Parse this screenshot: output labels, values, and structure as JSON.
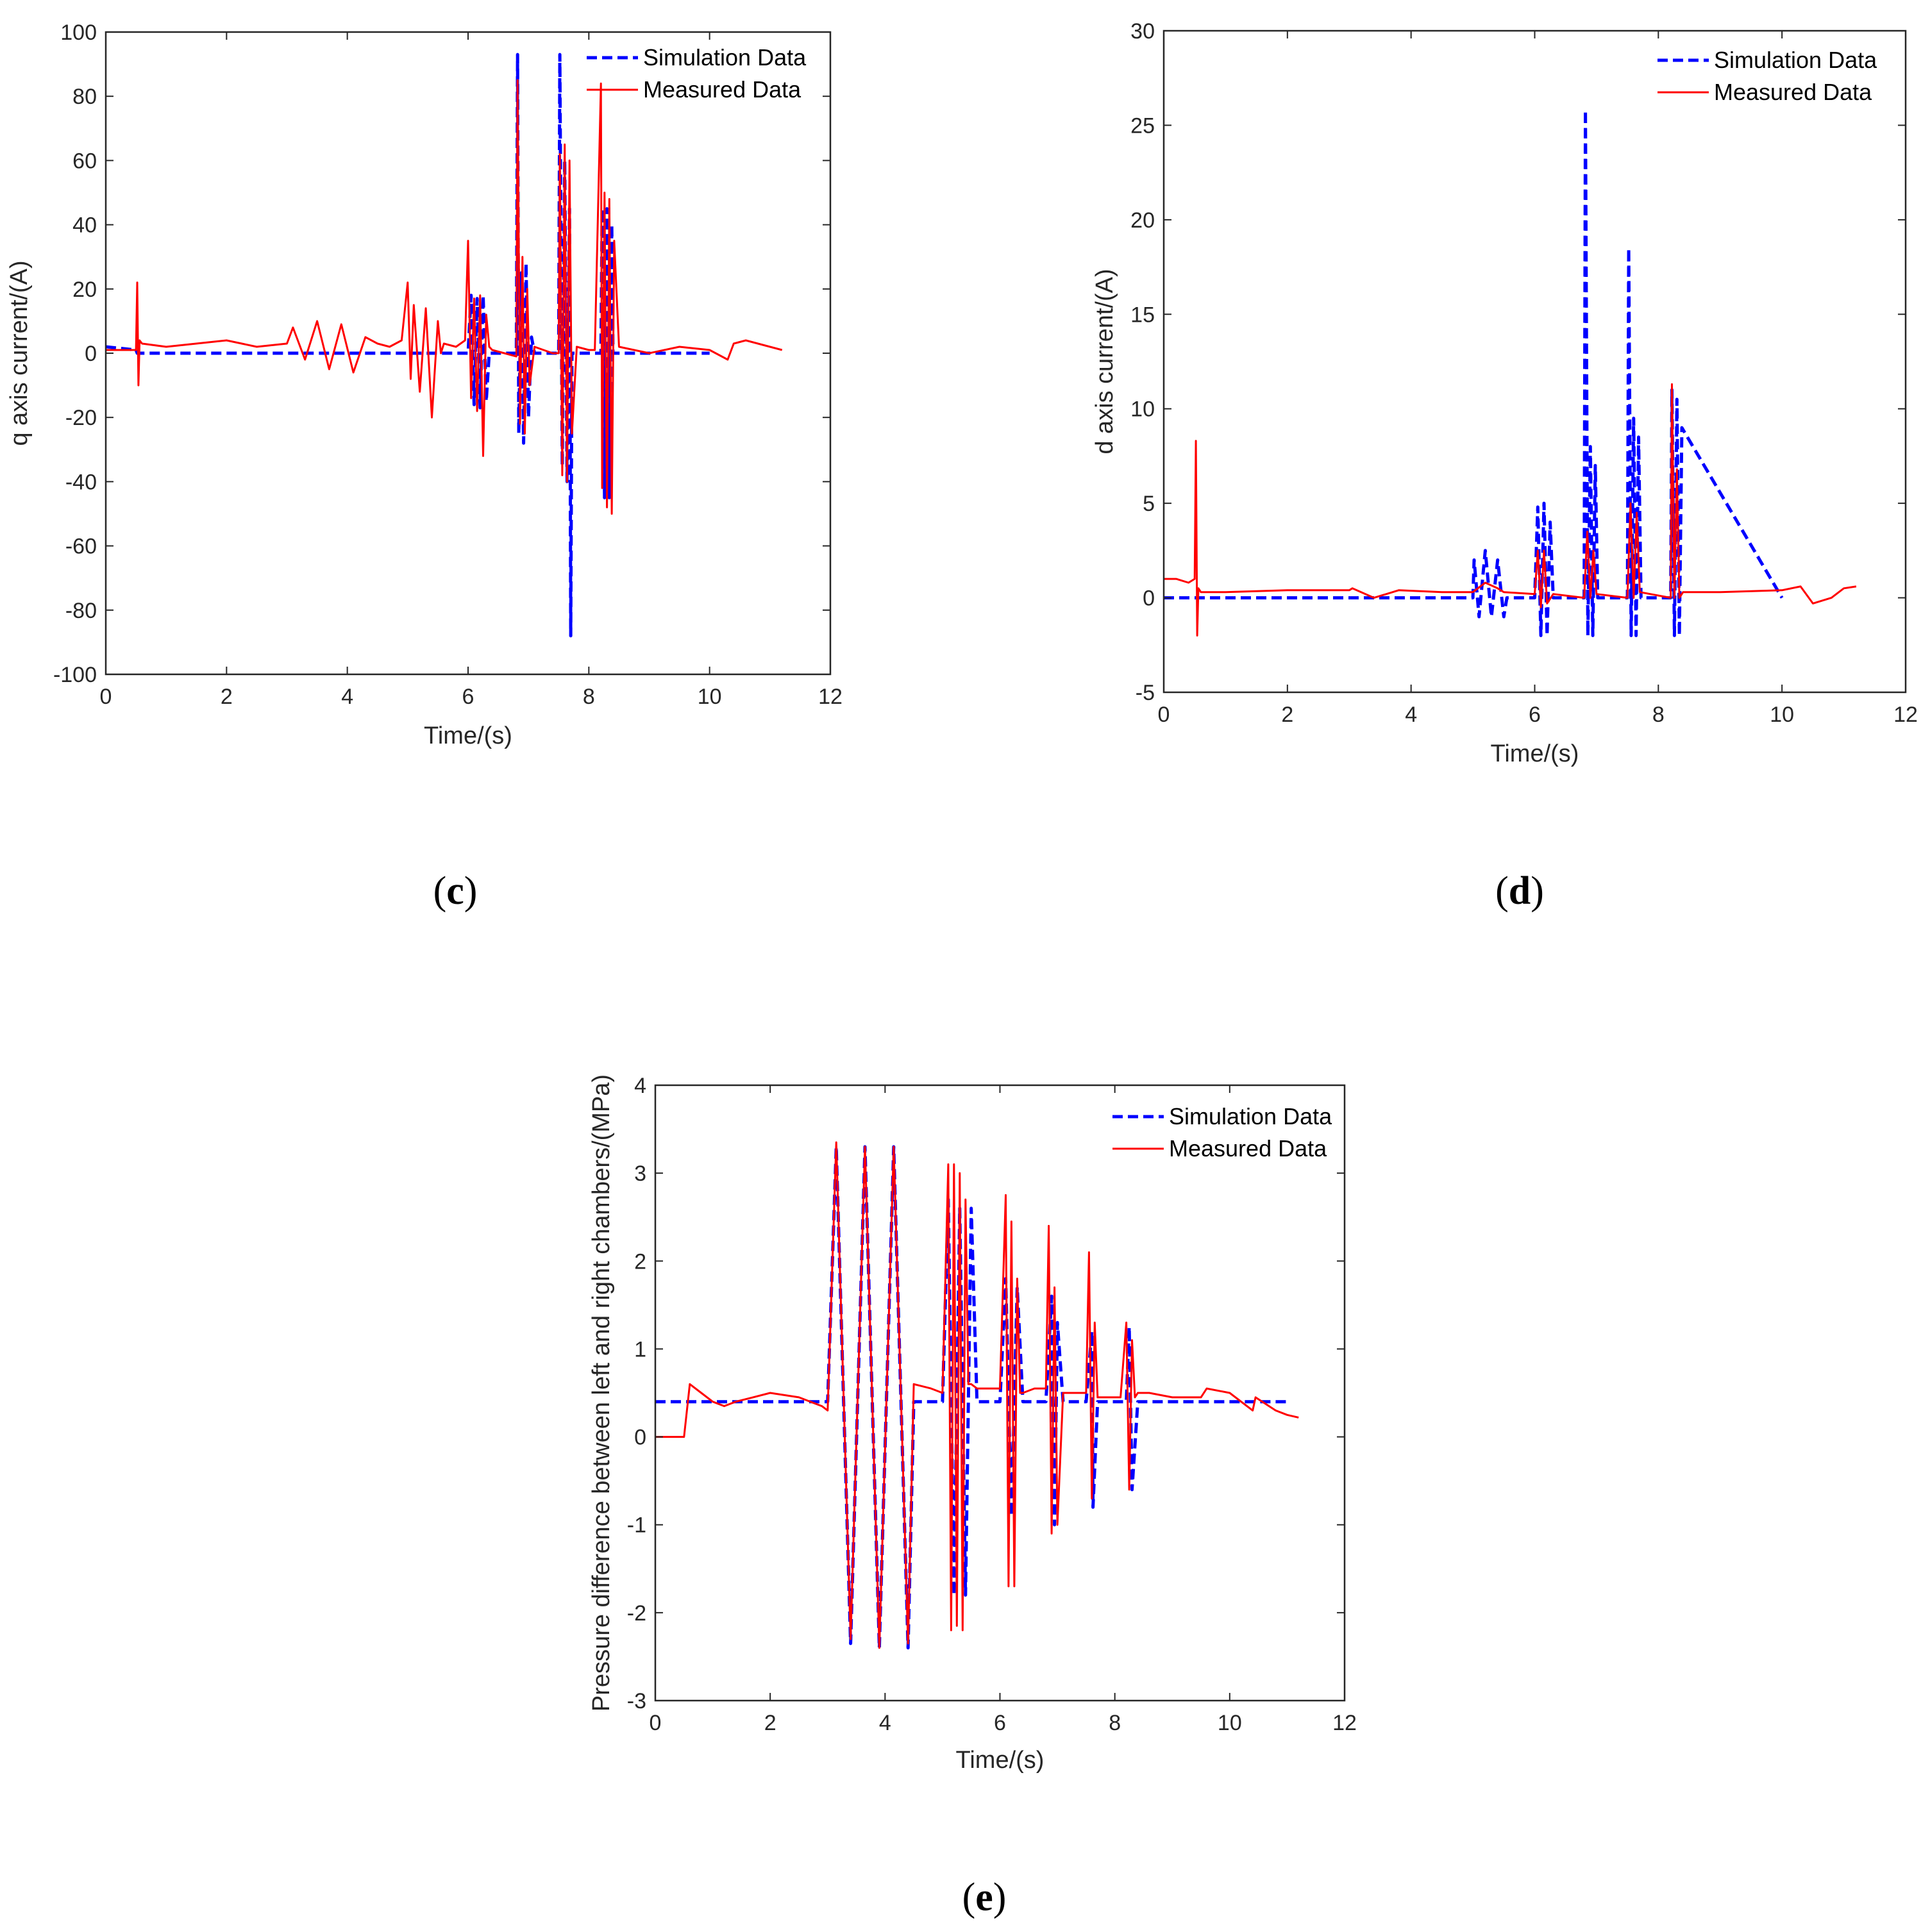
{
  "chart_data": [
    {
      "id": "c",
      "type": "line",
      "panel_label": "c",
      "xlabel": "Time/(s)",
      "ylabel": "q axis current/(A)",
      "xlim": [
        0,
        12
      ],
      "ylim": [
        -100,
        100
      ],
      "xticks": [
        0,
        2,
        4,
        6,
        8,
        10,
        12
      ],
      "yticks": [
        -100,
        -80,
        -60,
        -40,
        -20,
        0,
        20,
        40,
        60,
        80,
        100
      ],
      "legend_position": "top-right",
      "series": [
        {
          "name": "Simulation Data",
          "color": "#0000ff",
          "style": "dashed",
          "x": [
            0,
            0.5,
            0.52,
            3.0,
            3.3,
            3.6,
            3.9,
            4.2,
            4.5,
            4.7,
            5.0,
            5.4,
            5.8,
            6.0,
            6.05,
            6.1,
            6.15,
            6.2,
            6.25,
            6.3,
            6.35,
            6.4,
            6.6,
            6.8,
            6.82,
            6.84,
            6.88,
            6.92,
            6.96,
            7.0,
            7.05,
            7.1,
            7.4,
            7.5,
            7.52,
            7.56,
            7.6,
            7.64,
            7.68,
            7.7,
            7.72,
            7.8,
            8.0,
            8.2,
            8.22,
            8.26,
            8.3,
            8.34,
            8.38,
            8.4,
            8.6,
            10.0
          ],
          "y": [
            2,
            1,
            0,
            0,
            0,
            0,
            0,
            0,
            0,
            0,
            0,
            0,
            0,
            0,
            18,
            -16,
            17,
            -17,
            18,
            -15,
            0,
            0,
            0,
            0,
            93,
            -25,
            25,
            -28,
            28,
            -20,
            5,
            0,
            0,
            0,
            93,
            -35,
            60,
            -40,
            45,
            -88,
            0,
            0,
            0,
            0,
            45,
            -45,
            45,
            -45,
            40,
            0,
            0,
            0
          ]
        },
        {
          "name": "Measured Data",
          "color": "#ff0000",
          "style": "solid",
          "x": [
            0,
            0.3,
            0.5,
            0.52,
            0.54,
            0.56,
            0.6,
            1.0,
            1.5,
            2.0,
            2.5,
            3.0,
            3.1,
            3.3,
            3.5,
            3.7,
            3.9,
            4.1,
            4.3,
            4.5,
            4.7,
            4.9,
            5.0,
            5.05,
            5.1,
            5.2,
            5.3,
            5.4,
            5.5,
            5.55,
            5.6,
            5.8,
            5.95,
            6.0,
            6.05,
            6.1,
            6.15,
            6.2,
            6.25,
            6.3,
            6.35,
            6.4,
            6.6,
            6.8,
            6.82,
            6.86,
            6.9,
            6.94,
            6.98,
            7.02,
            7.1,
            7.4,
            7.5,
            7.52,
            7.56,
            7.6,
            7.64,
            7.68,
            7.72,
            7.8,
            8.0,
            8.1,
            8.2,
            8.22,
            8.26,
            8.3,
            8.34,
            8.38,
            8.42,
            8.5,
            9.0,
            9.5,
            10.0,
            10.3,
            10.4,
            10.6,
            11.0,
            11.2
          ],
          "y": [
            1,
            1,
            1,
            22,
            -10,
            4,
            3,
            2,
            3,
            4,
            2,
            3,
            8,
            -2,
            10,
            -5,
            9,
            -6,
            5,
            3,
            2,
            4,
            22,
            -8,
            15,
            -12,
            14,
            -20,
            10,
            0,
            3,
            2,
            4,
            35,
            -14,
            17,
            -18,
            18,
            -32,
            12,
            2,
            1,
            0,
            -1,
            85,
            -22,
            30,
            -25,
            20,
            -10,
            2,
            0,
            0,
            62,
            -38,
            65,
            -40,
            60,
            -25,
            2,
            1,
            1,
            84,
            -42,
            50,
            -48,
            48,
            -50,
            35,
            2,
            0,
            2,
            1,
            -2,
            3,
            4,
            2,
            1
          ]
        }
      ]
    },
    {
      "id": "d",
      "type": "line",
      "panel_label": "d",
      "xlabel": "Time/(s)",
      "ylabel": "d axis current/(A)",
      "xlim": [
        0,
        12
      ],
      "ylim": [
        -5,
        30
      ],
      "xticks": [
        0,
        2,
        4,
        6,
        8,
        10,
        12
      ],
      "yticks": [
        -5,
        0,
        5,
        10,
        15,
        20,
        25,
        30
      ],
      "legend_position": "top-right",
      "series": [
        {
          "name": "Simulation Data",
          "color": "#0000ff",
          "style": "dashed",
          "x": [
            0,
            0.5,
            0.52,
            5.0,
            5.02,
            5.1,
            5.2,
            5.3,
            5.4,
            5.5,
            5.55,
            6.0,
            6.05,
            6.1,
            6.15,
            6.2,
            6.25,
            6.3,
            6.8,
            6.82,
            6.86,
            6.9,
            6.94,
            6.98,
            7.02,
            7.5,
            7.52,
            7.56,
            7.6,
            7.64,
            7.68,
            7.72,
            8.2,
            8.22,
            8.26,
            8.3,
            8.34,
            8.38,
            10.0
          ],
          "y": [
            0,
            0,
            0,
            0,
            2,
            -1,
            2.5,
            -1,
            2,
            -1,
            0,
            0,
            4.8,
            -2,
            5,
            -2,
            4,
            0,
            0,
            25.8,
            -2,
            8,
            -2,
            7,
            0,
            0,
            18.5,
            -2,
            9.5,
            -2,
            8.5,
            0,
            0,
            11,
            -2,
            10.5,
            -2,
            9,
            0
          ]
        },
        {
          "name": "Measured Data",
          "color": "#ff0000",
          "style": "solid",
          "x": [
            0,
            0.2,
            0.4,
            0.5,
            0.52,
            0.54,
            0.56,
            0.6,
            1.0,
            2.0,
            3.0,
            3.05,
            3.4,
            3.8,
            4.5,
            5.0,
            5.2,
            5.4,
            5.5,
            6.0,
            6.05,
            6.1,
            6.15,
            6.2,
            6.3,
            6.8,
            6.85,
            6.9,
            6.95,
            7.0,
            7.5,
            7.55,
            7.6,
            7.65,
            7.7,
            8.2,
            8.22,
            8.26,
            8.3,
            8.34,
            8.4,
            9.0,
            10.0,
            10.3,
            10.5,
            10.8,
            11.0,
            11.2
          ],
          "y": [
            1,
            1,
            0.8,
            1,
            8.3,
            -2,
            0.5,
            0.3,
            0.3,
            0.4,
            0.4,
            0.5,
            0,
            0.4,
            0.3,
            0.3,
            0.8,
            0.5,
            0.3,
            0.2,
            2.5,
            -0.5,
            2.5,
            -0.3,
            0.2,
            0,
            3.5,
            0,
            2.5,
            0.2,
            0,
            5,
            0,
            4.5,
            0.3,
            0,
            11.3,
            0,
            6.8,
            0,
            0.3,
            0.3,
            0.4,
            0.6,
            -0.3,
            0,
            0.5,
            0.6
          ]
        }
      ]
    },
    {
      "id": "e",
      "type": "line",
      "panel_label": "e",
      "xlabel": "Time/(s)",
      "ylabel": "Pressure difference between left and right chambers/(MPa)",
      "xlim": [
        0,
        12
      ],
      "ylim": [
        -3,
        4
      ],
      "xticks": [
        0,
        2,
        4,
        6,
        8,
        10,
        12
      ],
      "yticks": [
        -3,
        -2,
        -1,
        0,
        1,
        2,
        3,
        4
      ],
      "legend_position": "top-right",
      "series": [
        {
          "name": "Simulation Data",
          "color": "#0000ff",
          "style": "dashed",
          "x": [
            0,
            0.05,
            3.0,
            3.15,
            3.4,
            3.65,
            3.9,
            4.15,
            4.4,
            4.5,
            5.0,
            5.1,
            5.2,
            5.3,
            5.4,
            5.5,
            5.6,
            6.0,
            6.1,
            6.2,
            6.3,
            6.4,
            6.8,
            6.9,
            6.95,
            7.0,
            7.1,
            7.5,
            7.6,
            7.62,
            7.7,
            8.2,
            8.25,
            8.3,
            8.4,
            10.0,
            11.0
          ],
          "y": [
            0.4,
            0.4,
            0.4,
            3.3,
            -2.35,
            3.3,
            -2.4,
            3.3,
            -2.4,
            0.4,
            0.4,
            2.7,
            -1.8,
            2.6,
            -1.8,
            2.6,
            0.4,
            0.4,
            1.8,
            -0.9,
            1.7,
            0.4,
            0.4,
            1.6,
            -1.0,
            1.3,
            0.4,
            0.4,
            1.2,
            -0.8,
            0.4,
            0.4,
            1.25,
            -0.6,
            0.4,
            0.4,
            0.4
          ]
        },
        {
          "name": "Measured Data",
          "color": "#ff0000",
          "style": "solid",
          "x": [
            0,
            0.5,
            0.55,
            0.6,
            0.8,
            1.0,
            1.2,
            1.4,
            1.7,
            2.0,
            2.5,
            2.9,
            3.0,
            3.15,
            3.4,
            3.65,
            3.9,
            4.15,
            4.4,
            4.5,
            4.8,
            5.0,
            5.1,
            5.15,
            5.2,
            5.25,
            5.3,
            5.35,
            5.4,
            5.45,
            5.5,
            5.6,
            5.8,
            6.0,
            6.1,
            6.15,
            6.2,
            6.25,
            6.3,
            6.35,
            6.4,
            6.6,
            6.8,
            6.85,
            6.9,
            6.95,
            7.0,
            7.1,
            7.3,
            7.5,
            7.55,
            7.6,
            7.65,
            7.7,
            7.9,
            8.1,
            8.2,
            8.25,
            8.3,
            8.35,
            8.4,
            8.6,
            9.0,
            9.5,
            9.6,
            10.0,
            10.4,
            10.45,
            10.8,
            11.0,
            11.2
          ],
          "y": [
            0,
            0,
            0.3,
            0.6,
            0.5,
            0.4,
            0.35,
            0.4,
            0.45,
            0.5,
            0.45,
            0.35,
            0.3,
            3.35,
            -2.3,
            3.3,
            -2.4,
            3.3,
            -2.35,
            0.6,
            0.55,
            0.5,
            3.1,
            -2.2,
            3.1,
            -2.15,
            3.0,
            -2.2,
            2.7,
            0.6,
            0.6,
            0.55,
            0.55,
            0.55,
            2.75,
            -1.7,
            2.45,
            -1.7,
            1.8,
            0.5,
            0.5,
            0.55,
            0.55,
            2.4,
            -1.1,
            1.7,
            -1.0,
            0.5,
            0.5,
            0.5,
            2.1,
            -0.7,
            1.3,
            0.45,
            0.45,
            0.45,
            1.3,
            -0.6,
            1.1,
            0.45,
            0.5,
            0.5,
            0.45,
            0.45,
            0.55,
            0.5,
            0.3,
            0.45,
            0.3,
            0.25,
            0.22
          ]
        }
      ]
    }
  ]
}
